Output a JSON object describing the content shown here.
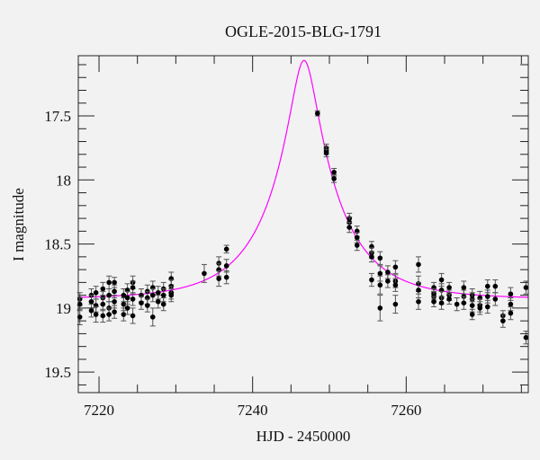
{
  "chart_data": {
    "type": "scatter",
    "title": "OGLE-2015-BLG-1791",
    "xlabel": "HJD - 2450000",
    "ylabel": "I magnitude",
    "xlim": [
      7217.3,
      7275.9
    ],
    "ylim": [
      17.03,
      19.66
    ],
    "y_inverted": true,
    "grid": false,
    "legend": "none",
    "xticks": [
      7220,
      7240,
      7260
    ],
    "xtick_labels": [
      "7220",
      "7240",
      "7260"
    ],
    "xminor_step": 5,
    "yticks": [
      17.5,
      18,
      18.5,
      19,
      19.5
    ],
    "ytick_labels": [
      "17.5",
      "18",
      "18.5",
      "19",
      "19.5"
    ],
    "yminor_step": 0.1,
    "colors": {
      "points": "#000000",
      "errorbars": "#555555",
      "model": "#ff00ff",
      "background": "#f2f2f2"
    },
    "model": {
      "name": "Paczynski point-lens fit",
      "t0": 7246.7,
      "u0": 0.182,
      "tE": 9.0,
      "I0": 18.93
    },
    "points": [
      [
        7217.5,
        18.93,
        0.05
      ],
      [
        7217.5,
        19.07,
        0.06
      ],
      [
        7217.5,
        18.97,
        0.05
      ],
      [
        7219.0,
        18.9,
        0.05
      ],
      [
        7219.0,
        18.95,
        0.05
      ],
      [
        7219.0,
        19.02,
        0.05
      ],
      [
        7219.6,
        18.88,
        0.05
      ],
      [
        7219.6,
        18.98,
        0.05
      ],
      [
        7219.6,
        19.05,
        0.06
      ],
      [
        7220.5,
        18.85,
        0.05
      ],
      [
        7220.5,
        18.92,
        0.05
      ],
      [
        7220.5,
        18.97,
        0.05
      ],
      [
        7220.5,
        19.06,
        0.05
      ],
      [
        7221.3,
        18.8,
        0.05
      ],
      [
        7221.3,
        18.9,
        0.05
      ],
      [
        7221.3,
        19.0,
        0.05
      ],
      [
        7221.3,
        19.05,
        0.05
      ],
      [
        7222.0,
        18.8,
        0.04
      ],
      [
        7222.0,
        18.87,
        0.05
      ],
      [
        7222.0,
        18.95,
        0.05
      ],
      [
        7222.0,
        19.03,
        0.05
      ],
      [
        7223.2,
        18.9,
        0.05
      ],
      [
        7223.2,
        18.97,
        0.05
      ],
      [
        7223.2,
        19.05,
        0.05
      ],
      [
        7223.7,
        18.86,
        0.05
      ],
      [
        7223.7,
        18.92,
        0.05
      ],
      [
        7223.7,
        19.0,
        0.05
      ],
      [
        7224.4,
        18.8,
        0.05
      ],
      [
        7224.4,
        18.84,
        0.05
      ],
      [
        7224.4,
        18.93,
        0.05
      ],
      [
        7224.4,
        19.06,
        0.06
      ],
      [
        7225.5,
        18.9,
        0.05
      ],
      [
        7225.5,
        18.96,
        0.05
      ],
      [
        7226.3,
        18.87,
        0.05
      ],
      [
        7226.3,
        18.92,
        0.05
      ],
      [
        7226.3,
        18.98,
        0.05
      ],
      [
        7227.0,
        18.84,
        0.05
      ],
      [
        7227.0,
        18.9,
        0.05
      ],
      [
        7227.0,
        19.07,
        0.07
      ],
      [
        7227.7,
        18.88,
        0.05
      ],
      [
        7227.7,
        18.95,
        0.05
      ],
      [
        7228.4,
        18.85,
        0.05
      ],
      [
        7228.4,
        18.9,
        0.05
      ],
      [
        7228.4,
        18.97,
        0.05
      ],
      [
        7229.4,
        18.77,
        0.05
      ],
      [
        7229.4,
        18.83,
        0.05
      ],
      [
        7229.4,
        18.88,
        0.05
      ],
      [
        7229.4,
        18.9,
        0.05
      ],
      [
        7233.7,
        18.73,
        0.07
      ],
      [
        7235.6,
        18.65,
        0.05
      ],
      [
        7235.6,
        18.7,
        0.05
      ],
      [
        7235.6,
        18.77,
        0.06
      ],
      [
        7236.6,
        18.54,
        0.03
      ],
      [
        7236.6,
        18.67,
        0.05
      ],
      [
        7236.6,
        18.76,
        0.05
      ],
      [
        7248.45,
        17.48,
        0.02
      ],
      [
        7249.6,
        17.75,
        0.03
      ],
      [
        7249.6,
        17.77,
        0.03
      ],
      [
        7249.6,
        17.79,
        0.03
      ],
      [
        7250.6,
        17.94,
        0.03
      ],
      [
        7250.6,
        17.99,
        0.03
      ],
      [
        7252.6,
        18.3,
        0.04
      ],
      [
        7252.6,
        18.33,
        0.04
      ],
      [
        7252.6,
        18.37,
        0.04
      ],
      [
        7253.6,
        18.4,
        0.04
      ],
      [
        7253.6,
        18.45,
        0.04
      ],
      [
        7253.6,
        18.51,
        0.04
      ],
      [
        7255.5,
        18.52,
        0.04
      ],
      [
        7255.5,
        18.57,
        0.04
      ],
      [
        7255.5,
        18.6,
        0.04
      ],
      [
        7255.5,
        18.78,
        0.05
      ],
      [
        7256.6,
        18.61,
        0.05
      ],
      [
        7256.6,
        18.73,
        0.06
      ],
      [
        7256.6,
        18.82,
        0.07
      ],
      [
        7256.6,
        19.0,
        0.1
      ],
      [
        7257.6,
        18.72,
        0.05
      ],
      [
        7257.6,
        18.79,
        0.05
      ],
      [
        7258.6,
        18.68,
        0.05
      ],
      [
        7258.6,
        18.79,
        0.05
      ],
      [
        7258.6,
        18.82,
        0.05
      ],
      [
        7258.6,
        18.97,
        0.07
      ],
      [
        7261.6,
        18.66,
        0.06
      ],
      [
        7261.6,
        18.81,
        0.06
      ],
      [
        7261.6,
        18.86,
        0.06
      ],
      [
        7261.6,
        18.95,
        0.06
      ],
      [
        7263.6,
        18.84,
        0.04
      ],
      [
        7263.6,
        18.89,
        0.04
      ],
      [
        7263.6,
        18.91,
        0.04
      ],
      [
        7263.6,
        18.95,
        0.04
      ],
      [
        7264.6,
        18.78,
        0.05
      ],
      [
        7264.6,
        18.86,
        0.05
      ],
      [
        7264.6,
        18.92,
        0.05
      ],
      [
        7264.6,
        18.96,
        0.05
      ],
      [
        7265.6,
        18.84,
        0.04
      ],
      [
        7265.6,
        18.9,
        0.04
      ],
      [
        7265.6,
        18.93,
        0.04
      ],
      [
        7266.6,
        18.97,
        0.05
      ],
      [
        7267.5,
        18.84,
        0.05
      ],
      [
        7267.5,
        18.91,
        0.05
      ],
      [
        7267.5,
        18.96,
        0.05
      ],
      [
        7268.6,
        18.9,
        0.05
      ],
      [
        7268.6,
        18.93,
        0.05
      ],
      [
        7268.6,
        18.98,
        0.05
      ],
      [
        7268.6,
        19.05,
        0.04
      ],
      [
        7269.6,
        18.92,
        0.05
      ],
      [
        7269.6,
        18.98,
        0.05
      ],
      [
        7269.6,
        19.0,
        0.05
      ],
      [
        7270.6,
        18.83,
        0.05
      ],
      [
        7270.6,
        18.91,
        0.05
      ],
      [
        7270.6,
        18.99,
        0.05
      ],
      [
        7271.6,
        18.83,
        0.05
      ],
      [
        7271.6,
        18.93,
        0.05
      ],
      [
        7272.6,
        19.06,
        0.04
      ],
      [
        7272.6,
        19.1,
        0.05
      ],
      [
        7273.6,
        18.89,
        0.05
      ],
      [
        7273.6,
        18.97,
        0.05
      ],
      [
        7273.6,
        19.04,
        0.05
      ],
      [
        7275.6,
        18.84,
        0.05
      ],
      [
        7275.6,
        19.23,
        0.05
      ]
    ]
  }
}
